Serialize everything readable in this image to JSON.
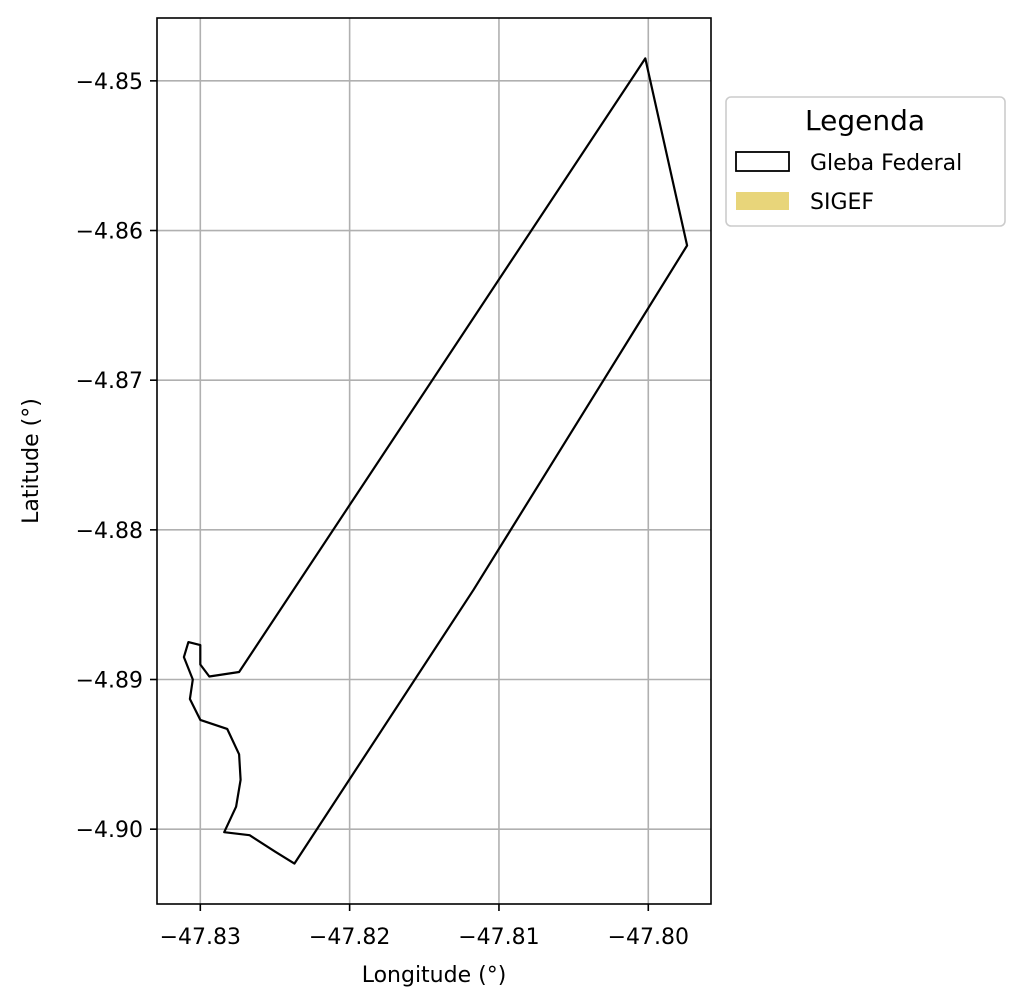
{
  "chart_data": {
    "type": "map",
    "xlabel": "Longitude (°)",
    "ylabel": "Latitude (°)",
    "xlim": [
      -47.8329,
      -47.7958
    ],
    "ylim": [
      -4.905,
      -4.8458
    ],
    "xticks": [
      -47.83,
      -47.82,
      -47.81,
      -47.8
    ],
    "xtick_labels": [
      "−47.83",
      "−47.82",
      "−47.81",
      "−47.80"
    ],
    "yticks": [
      -4.85,
      -4.86,
      -4.87,
      -4.88,
      -4.89,
      -4.9
    ],
    "ytick_labels": [
      "−4.85",
      "−4.86",
      "−4.87",
      "−4.88",
      "−4.89",
      "−4.90"
    ],
    "grid": true,
    "legend": {
      "title": "Legenda",
      "placement": "outside-right-top",
      "entries": [
        {
          "label": "Gleba Federal",
          "style": "outline",
          "color": "#000000"
        },
        {
          "label": "SIGEF",
          "style": "fill",
          "color": "#e8d57a"
        }
      ]
    },
    "polygons": [
      {
        "name": "Gleba Federal",
        "edgecolor": "#000000",
        "fill": "none",
        "coords": [
          [
            -47.8002,
            -4.8485
          ],
          [
            -47.7974,
            -4.861
          ],
          [
            -47.8117,
            -4.884
          ],
          [
            -47.8237,
            -4.9023
          ],
          [
            -47.825,
            -4.9015
          ],
          [
            -47.8267,
            -4.9004
          ],
          [
            -47.8284,
            -4.9002
          ],
          [
            -47.8276,
            -4.8985
          ],
          [
            -47.8273,
            -4.8967
          ],
          [
            -47.8274,
            -4.895
          ],
          [
            -47.8282,
            -4.8933
          ],
          [
            -47.83,
            -4.8927
          ],
          [
            -47.8307,
            -4.8913
          ],
          [
            -47.8305,
            -4.89
          ],
          [
            -47.8311,
            -4.8885
          ],
          [
            -47.8308,
            -4.8875
          ],
          [
            -47.83,
            -4.8877
          ],
          [
            -47.83,
            -4.889
          ],
          [
            -47.8294,
            -4.8898
          ],
          [
            -47.8274,
            -4.8895
          ],
          [
            -47.8002,
            -4.8485
          ]
        ]
      }
    ]
  }
}
